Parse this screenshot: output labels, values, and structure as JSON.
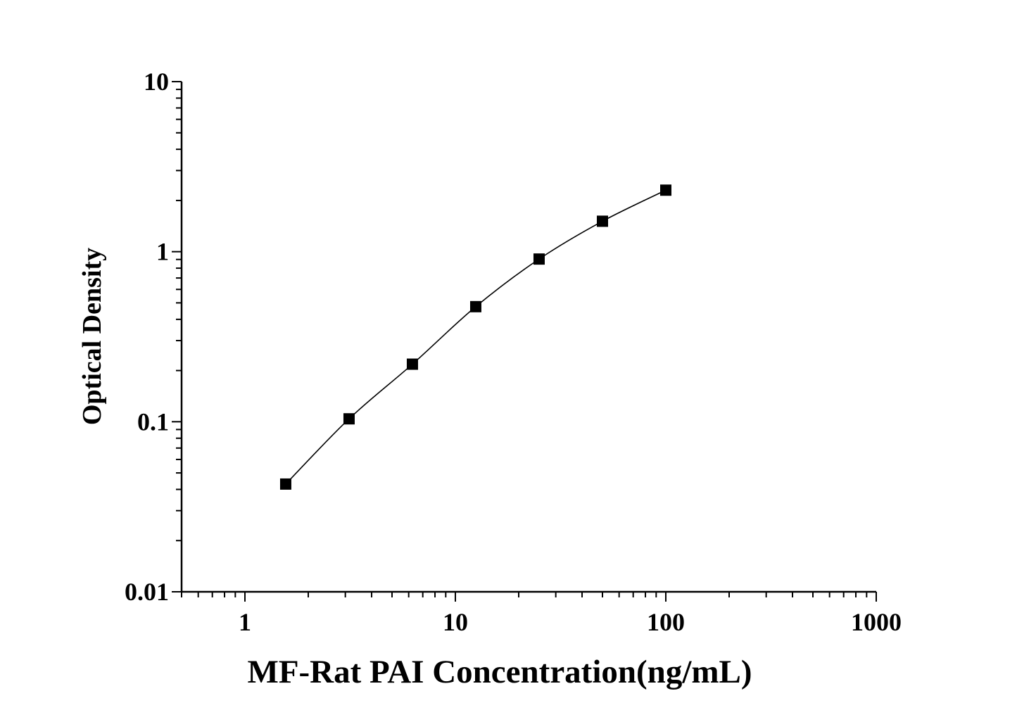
{
  "chart_data": {
    "type": "scatter",
    "title": "",
    "xlabel": "MF-Rat PAI Concentration(ng/mL)",
    "ylabel": "Optical Density",
    "x_scale": "log",
    "y_scale": "log",
    "xlim": [
      0.5,
      1000
    ],
    "ylim": [
      0.01,
      10
    ],
    "x_ticks": [
      1,
      10,
      100,
      1000
    ],
    "x_tick_labels": [
      "1",
      "10",
      "100",
      "1000"
    ],
    "y_ticks": [
      0.01,
      0.1,
      1,
      10
    ],
    "y_tick_labels": [
      "0.01",
      "0.1",
      "1",
      "10"
    ],
    "grid": false,
    "legend": "none",
    "marker": "square",
    "color": "#000000",
    "series": [
      {
        "x": [
          1.5625,
          3.125,
          6.25,
          12.5,
          25,
          50,
          100
        ],
        "y": [
          0.043,
          0.104,
          0.218,
          0.475,
          0.905,
          1.51,
          2.3
        ]
      }
    ]
  }
}
